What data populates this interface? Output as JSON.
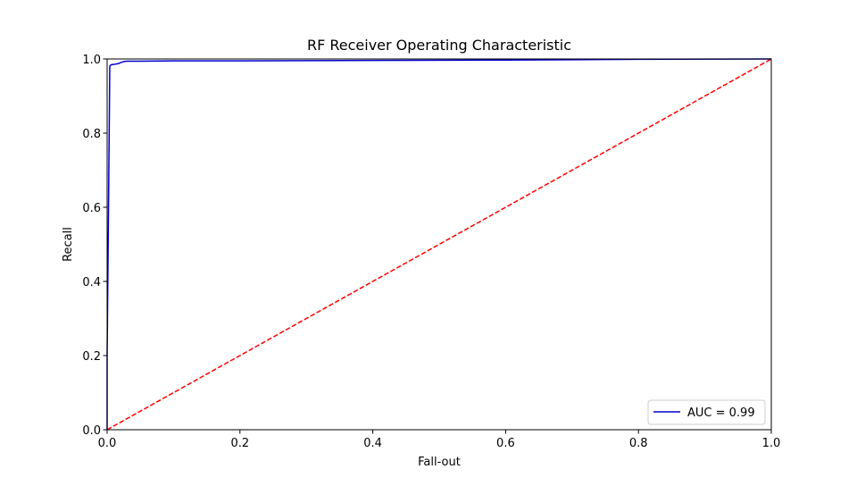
{
  "chart_data": {
    "type": "line",
    "title": "RF Receiver Operating Characteristic",
    "xlabel": "Fall-out",
    "ylabel": "Recall",
    "xlim": [
      0.0,
      1.0
    ],
    "ylim": [
      0.0,
      1.0
    ],
    "xticks": [
      "0.0",
      "0.2",
      "0.4",
      "0.6",
      "0.8",
      "1.0"
    ],
    "yticks": [
      "0.0",
      "0.2",
      "0.4",
      "0.6",
      "0.8",
      "1.0"
    ],
    "grid": false,
    "legend_position": "lower-right",
    "series": [
      {
        "name": "AUC = 0.99",
        "color": "#0000cc",
        "style": "solid",
        "x": [
          0.0,
          0.0,
          0.002,
          0.004,
          0.005,
          0.007,
          0.009,
          0.012,
          0.016,
          0.02,
          0.025,
          0.03,
          0.05,
          0.1,
          0.2,
          0.4,
          0.6,
          0.8,
          1.0
        ],
        "y": [
          0.0,
          0.2,
          0.58,
          0.98,
          0.983,
          0.985,
          0.985,
          0.986,
          0.987,
          0.99,
          0.993,
          0.994,
          0.994,
          0.995,
          0.995,
          0.996,
          0.997,
          0.999,
          1.0
        ]
      },
      {
        "name": "",
        "color": "#ff0000",
        "style": "dashed",
        "x": [
          0.0,
          1.0
        ],
        "y": [
          0.0,
          1.0
        ]
      }
    ]
  }
}
